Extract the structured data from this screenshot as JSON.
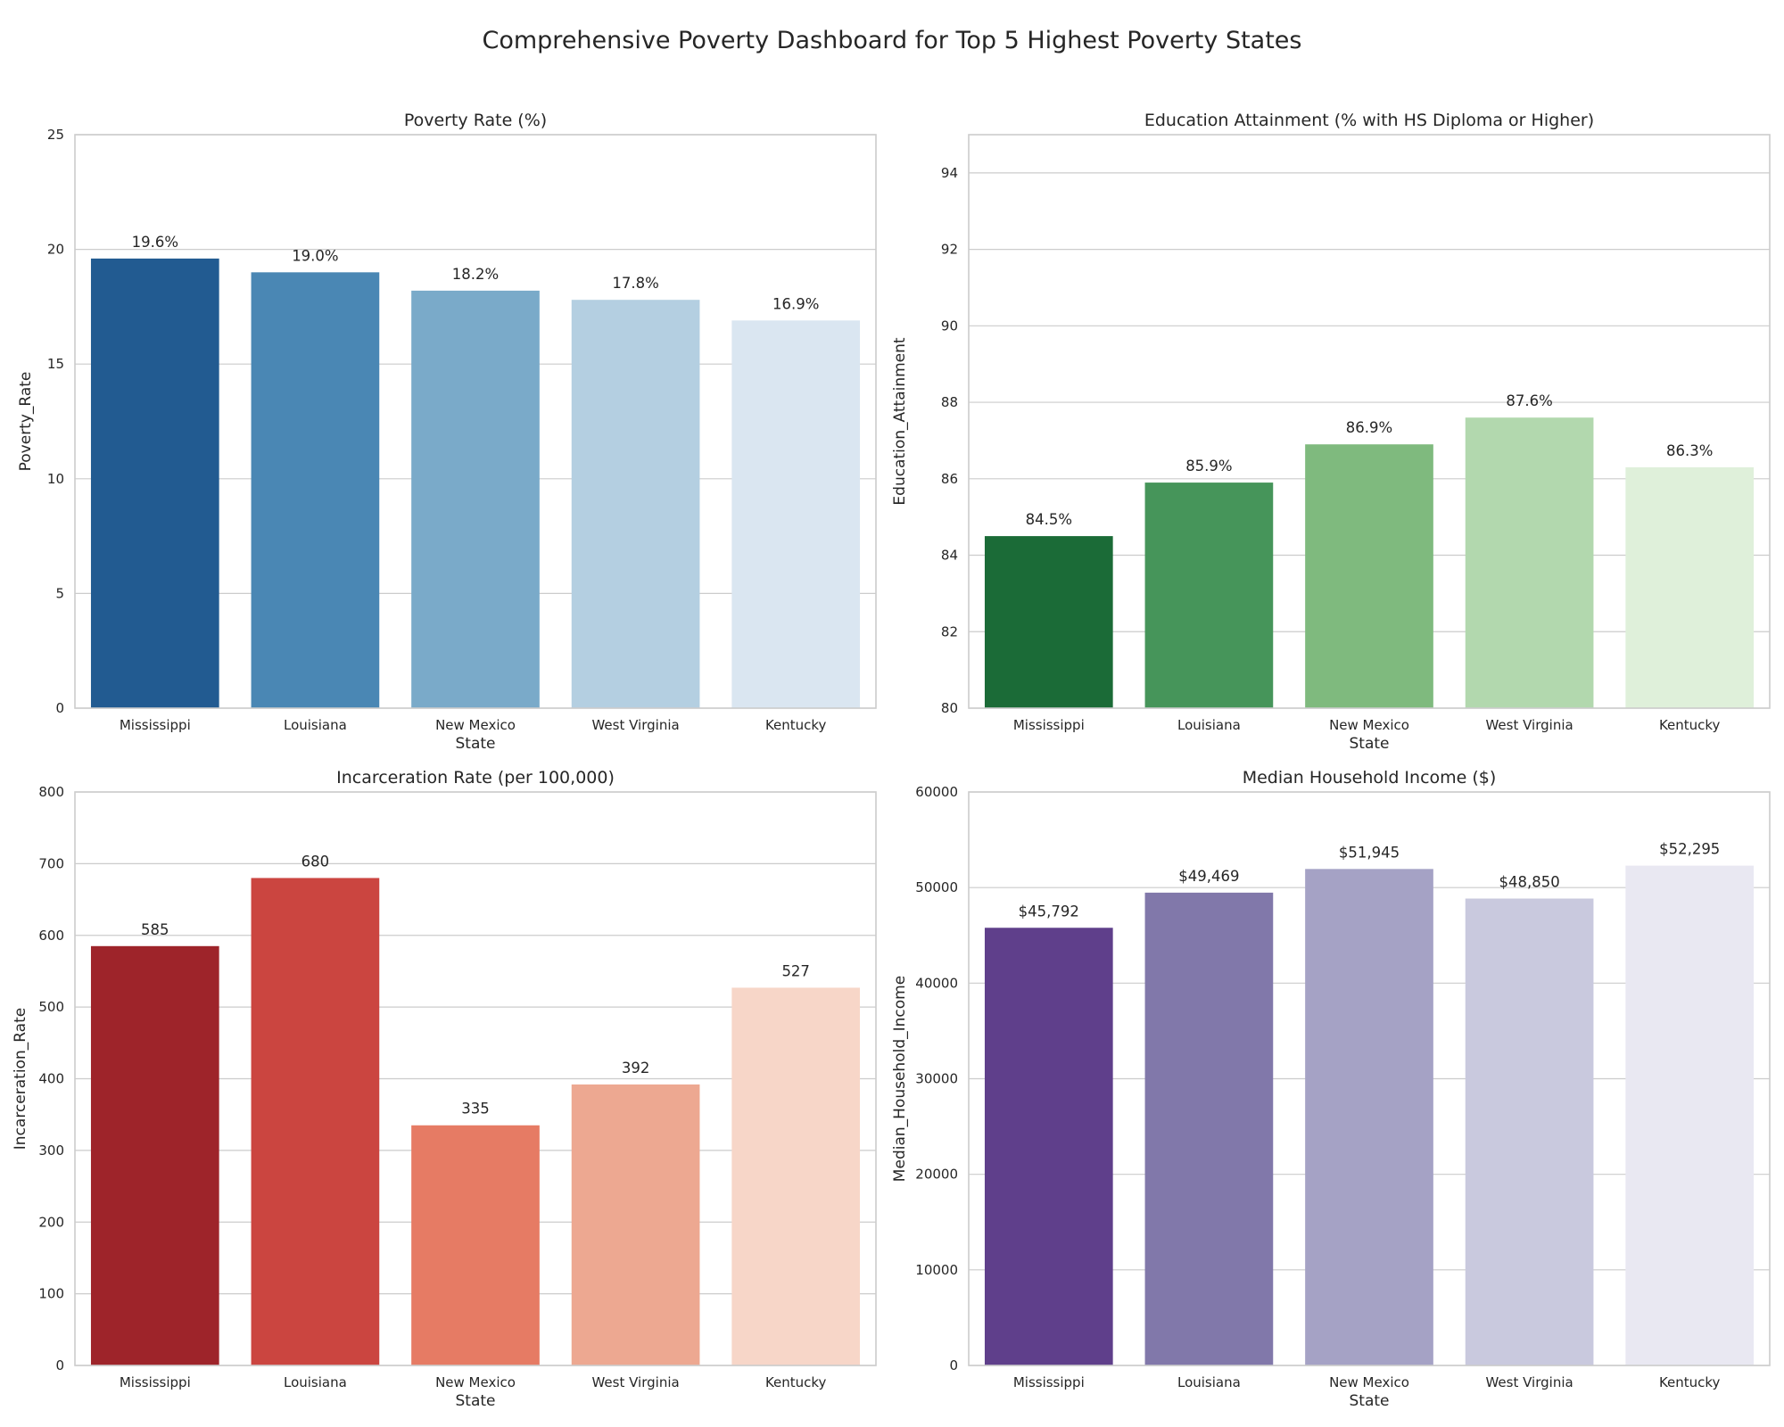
{
  "title": "Comprehensive Poverty Dashboard for Top 5 Highest Poverty States",
  "chart_data": [
    {
      "type": "bar",
      "title": "Poverty Rate (%)",
      "xlabel": "State",
      "ylabel": "Poverty_Rate",
      "categories": [
        "Mississippi",
        "Louisiana",
        "New Mexico",
        "West Virginia",
        "Kentucky"
      ],
      "values": [
        19.6,
        19.0,
        18.2,
        17.8,
        16.9
      ],
      "value_labels": [
        "19.6%",
        "19.0%",
        "18.2%",
        "17.8%",
        "16.9%"
      ],
      "ylim": [
        0,
        25
      ],
      "yticks": [
        0,
        5,
        10,
        15,
        20,
        25
      ],
      "colors": [
        "#225b91",
        "#4a87b4",
        "#7aaac9",
        "#b4cfe1",
        "#dae6f1"
      ]
    },
    {
      "type": "bar",
      "title": "Education Attainment (% with HS Diploma or Higher)",
      "xlabel": "State",
      "ylabel": "Education_Attainment",
      "categories": [
        "Mississippi",
        "Louisiana",
        "New Mexico",
        "West Virginia",
        "Kentucky"
      ],
      "values": [
        84.5,
        85.9,
        86.9,
        87.6,
        86.3
      ],
      "value_labels": [
        "84.5%",
        "85.9%",
        "86.9%",
        "87.6%",
        "86.3%"
      ],
      "ylim": [
        80,
        95
      ],
      "yticks": [
        80,
        82,
        84,
        86,
        88,
        90,
        92,
        94
      ],
      "colors": [
        "#1b6b37",
        "#46955a",
        "#7fba7e",
        "#b2d8ae",
        "#dff0da"
      ]
    },
    {
      "type": "bar",
      "title": "Incarceration Rate (per 100,000)",
      "xlabel": "State",
      "ylabel": "Incarceration_Rate",
      "categories": [
        "Mississippi",
        "Louisiana",
        "New Mexico",
        "West Virginia",
        "Kentucky"
      ],
      "values": [
        585,
        680,
        335,
        392,
        527
      ],
      "value_labels": [
        "585",
        "680",
        "335",
        "392",
        "527"
      ],
      "ylim": [
        0,
        800
      ],
      "yticks": [
        0,
        100,
        200,
        300,
        400,
        500,
        600,
        700,
        800
      ],
      "colors": [
        "#9e242a",
        "#cb4540",
        "#e67b64",
        "#eda891",
        "#f7d6c8"
      ]
    },
    {
      "type": "bar",
      "title": "Median Household Income ($)",
      "xlabel": "State",
      "ylabel": "Median_Household_Income",
      "categories": [
        "Mississippi",
        "Louisiana",
        "New Mexico",
        "West Virginia",
        "Kentucky"
      ],
      "values": [
        45792,
        49469,
        51945,
        48850,
        52295
      ],
      "value_labels": [
        "$45,792",
        "$49,469",
        "$51,945",
        "$48,850",
        "$52,295"
      ],
      "ylim": [
        0,
        60000
      ],
      "yticks": [
        0,
        10000,
        20000,
        30000,
        40000,
        50000,
        60000
      ],
      "colors": [
        "#5f3f8b",
        "#8178aa",
        "#a5a2c5",
        "#c9c9de",
        "#e9e8f2"
      ]
    }
  ]
}
